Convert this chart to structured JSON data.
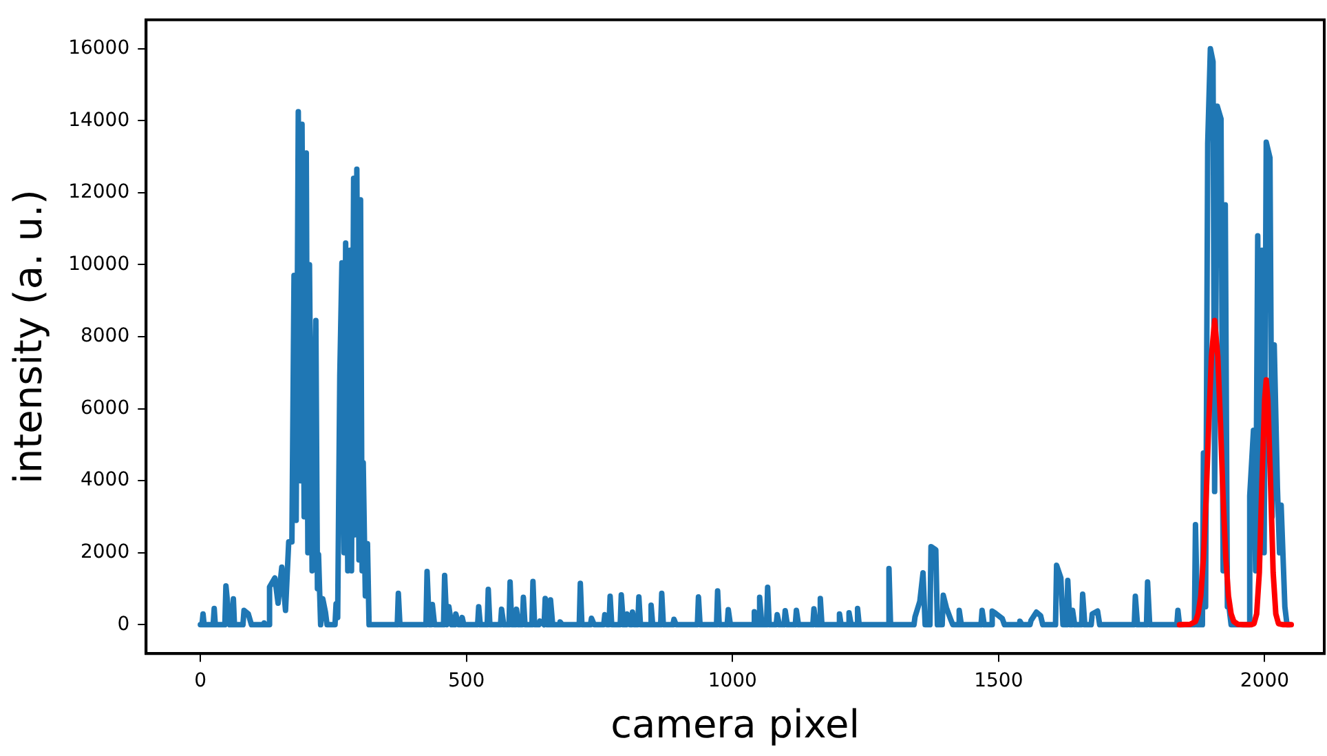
{
  "chart_data": {
    "type": "line",
    "xlabel": "camera pixel",
    "ylabel": "intensity (a. u.)",
    "xlim": [
      -102,
      2112
    ],
    "ylim": [
      -800,
      16800
    ],
    "xticks": [
      0,
      500,
      1000,
      1500,
      2000
    ],
    "yticks": [
      0,
      2000,
      4000,
      6000,
      8000,
      10000,
      12000,
      14000,
      16000
    ],
    "marker": "none",
    "line_style": "solid",
    "series": [
      {
        "color": "#1f77b4",
        "x": [
          0,
          3,
          5,
          7,
          24,
          26,
          28,
          46,
          48,
          55,
          60,
          62,
          64,
          80,
          82,
          90,
          96,
          118,
          120,
          122,
          128,
          130,
          140,
          146,
          153,
          160,
          166,
          172,
          176,
          180,
          184,
          188,
          191,
          195,
          199,
          202,
          205,
          210,
          217,
          220,
          222,
          226,
          230,
          235,
          238,
          253,
          255,
          258,
          262,
          266,
          270,
          273,
          277,
          281,
          284,
          288,
          291,
          294,
          298,
          301,
          304,
          306,
          310,
          314,
          317,
          370,
          372,
          375,
          424,
          426,
          430,
          434,
          436,
          440,
          457,
          459,
          463,
          467,
          472,
          478,
          480,
          485,
          490,
          492,
          495,
          521,
          523,
          526,
          539,
          541,
          544,
          564,
          566,
          570,
          580,
          582,
          585,
          592,
          594,
          598,
          605,
          607,
          610,
          623,
          625,
          628,
          636,
          638,
          646,
          648,
          652,
          656,
          658,
          662,
          674,
          676,
          680,
          712,
          714,
          717,
          733,
          735,
          740,
          758,
          760,
          765,
          768,
          770,
          773,
          789,
          791,
          795,
          800,
          802,
          807,
          810,
          812,
          816,
          822,
          824,
          827,
          845,
          847,
          850,
          865,
          867,
          870,
          888,
          890,
          894,
          934,
          936,
          939,
          970,
          972,
          975,
          990,
          992,
          996,
          1039,
          1041,
          1045,
          1049,
          1051,
          1055,
          1064,
          1066,
          1069,
          1082,
          1084,
          1088,
          1097,
          1099,
          1103,
          1118,
          1120,
          1124,
          1151,
          1153,
          1157,
          1163,
          1165,
          1168,
          1199,
          1201,
          1204,
          1217,
          1219,
          1223,
          1233,
          1235,
          1238,
          1292,
          1294,
          1297,
          1341,
          1343,
          1352,
          1358,
          1362,
          1371,
          1373,
          1382,
          1385,
          1394,
          1396,
          1402,
          1410,
          1414,
          1424,
          1426,
          1430,
          1467,
          1469,
          1473,
          1486,
          1488,
          1494,
          1507,
          1511,
          1538,
          1540,
          1544,
          1559,
          1561,
          1571,
          1579,
          1583,
          1607,
          1609,
          1617,
          1621,
          1628,
          1630,
          1634,
          1637,
          1639,
          1643,
          1656,
          1658,
          1662,
          1674,
          1676,
          1686,
          1690,
          1755,
          1757,
          1761,
          1778,
          1780,
          1784,
          1835,
          1837,
          1840,
          1868,
          1870,
          1874,
          1883,
          1885,
          1889,
          1893,
          1898,
          1903,
          1906,
          1911,
          1918,
          1922,
          1926,
          1930,
          1933,
          1937,
          1970,
          1972,
          1979,
          1983,
          1987,
          1991,
          1995,
          1999,
          2003,
          2010,
          2014,
          2018,
          2024,
          2028,
          2031,
          2038,
          2042,
          2047
        ],
        "values": [
          0,
          0,
          300,
          0,
          0,
          450,
          0,
          0,
          1080,
          0,
          0,
          720,
          0,
          0,
          400,
          300,
          0,
          0,
          50,
          0,
          0,
          1050,
          1300,
          600,
          1600,
          400,
          2300,
          2300,
          9700,
          2900,
          14250,
          4000,
          13900,
          3000,
          13100,
          2000,
          10000,
          1500,
          8450,
          1000,
          1950,
          0,
          720,
          350,
          0,
          0,
          580,
          200,
          6900,
          10050,
          2000,
          10600,
          1500,
          10400,
          1500,
          12400,
          2500,
          12650,
          1800,
          11800,
          1500,
          4500,
          800,
          2250,
          0,
          0,
          870,
          0,
          0,
          1480,
          0,
          0,
          560,
          0,
          0,
          1370,
          0,
          500,
          0,
          0,
          300,
          0,
          0,
          200,
          0,
          0,
          500,
          0,
          0,
          980,
          0,
          0,
          430,
          0,
          0,
          1190,
          0,
          0,
          430,
          0,
          0,
          760,
          0,
          0,
          1200,
          0,
          0,
          100,
          0,
          730,
          0,
          0,
          690,
          0,
          0,
          80,
          0,
          0,
          1150,
          0,
          0,
          180,
          0,
          0,
          280,
          0,
          0,
          790,
          0,
          0,
          830,
          0,
          0,
          300,
          0,
          0,
          350,
          0,
          0,
          770,
          0,
          0,
          540,
          0,
          0,
          870,
          0,
          0,
          150,
          0,
          0,
          770,
          0,
          0,
          940,
          0,
          0,
          420,
          0,
          0,
          360,
          0,
          0,
          760,
          0,
          0,
          1040,
          0,
          0,
          280,
          0,
          0,
          390,
          0,
          0,
          400,
          0,
          0,
          440,
          0,
          0,
          730,
          0,
          0,
          300,
          0,
          0,
          330,
          0,
          0,
          450,
          0,
          0,
          1560,
          0,
          0,
          220,
          650,
          1440,
          0,
          0,
          2170,
          2080,
          0,
          0,
          820,
          470,
          150,
          0,
          0,
          400,
          0,
          0,
          400,
          0,
          0,
          380,
          320,
          170,
          0,
          0,
          100,
          0,
          0,
          120,
          350,
          250,
          0,
          0,
          1650,
          1300,
          0,
          0,
          1230,
          0,
          0,
          400,
          0,
          0,
          850,
          0,
          0,
          300,
          380,
          0,
          0,
          790,
          0,
          0,
          1190,
          0,
          0,
          400,
          0,
          0,
          2780,
          0,
          0,
          4770,
          500,
          13360,
          16000,
          15640,
          3700,
          14400,
          14050,
          1500,
          11660,
          500,
          500,
          0,
          0,
          3580,
          5400,
          1500,
          10800,
          2000,
          10400,
          2000,
          13400,
          12970,
          3000,
          7770,
          3800,
          2000,
          3320,
          500,
          0,
          0
        ]
      },
      {
        "color": "#ff0000",
        "x": [
          1840,
          1860,
          1870,
          1875,
          1880,
          1885,
          1890,
          1895,
          1900,
          1906,
          1912,
          1917,
          1922,
          1927,
          1932,
          1937,
          1942,
          1950,
          1960,
          1975,
          1980,
          1985,
          1990,
          1995,
          2000,
          2003,
          2006,
          2011,
          2016,
          2021,
          2026,
          2035,
          2050
        ],
        "values": [
          0,
          10,
          90,
          300,
          800,
          1850,
          3500,
          5600,
          7450,
          8450,
          7450,
          5600,
          3500,
          1850,
          800,
          300,
          90,
          10,
          0,
          0,
          30,
          300,
          1450,
          4000,
          6250,
          6800,
          6250,
          4000,
          1450,
          300,
          30,
          0,
          0
        ]
      }
    ]
  }
}
